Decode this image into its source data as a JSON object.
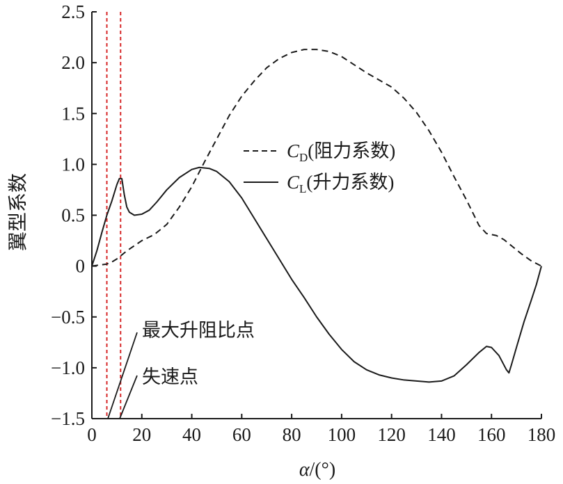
{
  "chart_data": {
    "type": "line",
    "xlabel_italic": "α",
    "xlabel_unit": "/(°)",
    "ylabel": "翼型系数",
    "xlim": [
      0,
      180
    ],
    "ylim": [
      -1.5,
      2.5
    ],
    "x_ticks": [
      "0",
      "20",
      "40",
      "60",
      "80",
      "100",
      "120",
      "140",
      "160",
      "180"
    ],
    "y_ticks": [
      "2.5",
      "2.0",
      "1.5",
      "1.0",
      "0.5",
      "0",
      "−0.5",
      "−1.0",
      "−1.5"
    ],
    "x_tick_values": [
      0,
      20,
      40,
      60,
      80,
      100,
      120,
      140,
      160,
      180
    ],
    "y_tick_values": [
      2.5,
      2.0,
      1.5,
      1.0,
      0.5,
      0,
      -0.5,
      -1.0,
      -1.5
    ],
    "grid": false,
    "legend_position": "right",
    "series": [
      {
        "name": "CD(阻力系数)",
        "legend_main": "C",
        "legend_sub": "D",
        "legend_suffix": "(阻力系数)",
        "style": "dashed",
        "color": "#1a1a1a",
        "points": [
          [
            0,
            0
          ],
          [
            3,
            0.01
          ],
          [
            6,
            0.02
          ],
          [
            8,
            0.04
          ],
          [
            10,
            0.07
          ],
          [
            12,
            0.11
          ],
          [
            14,
            0.15
          ],
          [
            17,
            0.2
          ],
          [
            20,
            0.25
          ],
          [
            25,
            0.31
          ],
          [
            30,
            0.41
          ],
          [
            35,
            0.58
          ],
          [
            40,
            0.78
          ],
          [
            45,
            1.02
          ],
          [
            50,
            1.25
          ],
          [
            55,
            1.48
          ],
          [
            60,
            1.67
          ],
          [
            65,
            1.82
          ],
          [
            70,
            1.95
          ],
          [
            75,
            2.04
          ],
          [
            80,
            2.1
          ],
          [
            85,
            2.13
          ],
          [
            90,
            2.13
          ],
          [
            95,
            2.11
          ],
          [
            100,
            2.06
          ],
          [
            105,
            1.98
          ],
          [
            110,
            1.9
          ],
          [
            115,
            1.83
          ],
          [
            120,
            1.76
          ],
          [
            125,
            1.65
          ],
          [
            130,
            1.51
          ],
          [
            135,
            1.33
          ],
          [
            140,
            1.12
          ],
          [
            145,
            0.88
          ],
          [
            150,
            0.65
          ],
          [
            155,
            0.4
          ],
          [
            158,
            0.32
          ],
          [
            162,
            0.3
          ],
          [
            165,
            0.26
          ],
          [
            168,
            0.2
          ],
          [
            172,
            0.12
          ],
          [
            176,
            0.05
          ],
          [
            180,
            0
          ]
        ]
      },
      {
        "name": "CL(升力系数)",
        "legend_main": "C",
        "legend_sub": "L",
        "legend_suffix": "(升力系数)",
        "style": "solid",
        "color": "#1a1a1a",
        "points": [
          [
            0,
            0
          ],
          [
            2,
            0.15
          ],
          [
            4,
            0.33
          ],
          [
            6,
            0.5
          ],
          [
            8,
            0.64
          ],
          [
            10,
            0.8
          ],
          [
            11,
            0.86
          ],
          [
            12,
            0.86
          ],
          [
            13,
            0.7
          ],
          [
            14,
            0.58
          ],
          [
            15,
            0.53
          ],
          [
            17,
            0.5
          ],
          [
            20,
            0.51
          ],
          [
            23,
            0.55
          ],
          [
            26,
            0.63
          ],
          [
            30,
            0.75
          ],
          [
            35,
            0.87
          ],
          [
            40,
            0.95
          ],
          [
            43,
            0.97
          ],
          [
            47,
            0.96
          ],
          [
            50,
            0.93
          ],
          [
            55,
            0.83
          ],
          [
            60,
            0.67
          ],
          [
            65,
            0.47
          ],
          [
            70,
            0.27
          ],
          [
            75,
            0.07
          ],
          [
            80,
            -0.13
          ],
          [
            85,
            -0.31
          ],
          [
            90,
            -0.5
          ],
          [
            95,
            -0.67
          ],
          [
            100,
            -0.82
          ],
          [
            105,
            -0.94
          ],
          [
            110,
            -1.02
          ],
          [
            115,
            -1.07
          ],
          [
            120,
            -1.1
          ],
          [
            125,
            -1.12
          ],
          [
            130,
            -1.13
          ],
          [
            135,
            -1.14
          ],
          [
            140,
            -1.13
          ],
          [
            145,
            -1.08
          ],
          [
            150,
            -0.97
          ],
          [
            155,
            -0.85
          ],
          [
            158,
            -0.79
          ],
          [
            160,
            -0.8
          ],
          [
            163,
            -0.88
          ],
          [
            166,
            -1.02
          ],
          [
            167,
            -1.05
          ],
          [
            168,
            -0.97
          ],
          [
            170,
            -0.8
          ],
          [
            173,
            -0.55
          ],
          [
            176,
            -0.33
          ],
          [
            178,
            -0.18
          ],
          [
            180,
            0
          ]
        ]
      }
    ],
    "reference_lines": [
      {
        "x": 6,
        "color": "#d62728",
        "style": "dotted"
      },
      {
        "x": 11.5,
        "color": "#d62728",
        "style": "dotted"
      }
    ],
    "annotations": [
      {
        "text": "最大升阻比点",
        "target_x": 6.5
      },
      {
        "text": "失速点",
        "target_x": 11.5
      }
    ]
  }
}
